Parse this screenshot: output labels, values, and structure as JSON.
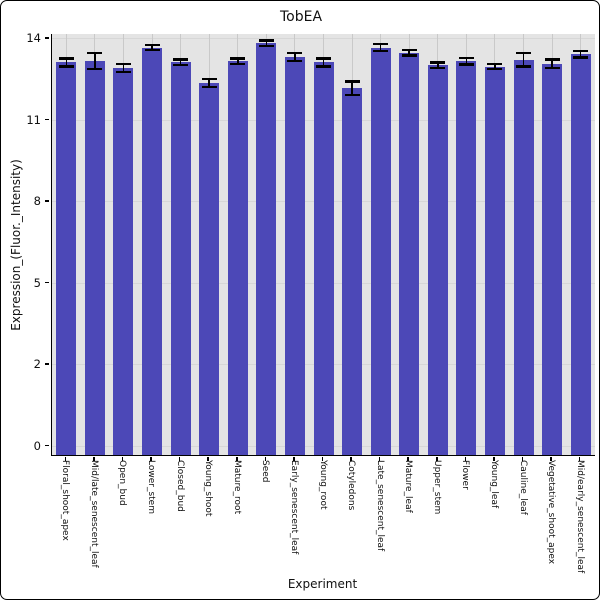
{
  "window": {
    "title": "TobEA"
  },
  "chart_data": {
    "type": "bar",
    "title": "TobEA",
    "xlabel": "Experiment",
    "ylabel": "Expression_(Fluor._Intensity)",
    "categories": [
      "Floral_shoot_apex",
      "Mid/late_senescent_leaf",
      "Open_bud",
      "Lower_stem",
      "Closed_bud",
      "Young_shoot",
      "Mature_root",
      "Seed",
      "Early_senescent_leaf",
      "Young_root",
      "Cotyledons",
      "Late_senescent_leaf",
      "Mature_leaf",
      "Upper_stem",
      "Flower",
      "Young_leaf",
      "Cauline_leaf",
      "Vegetative_shoot_apex",
      "Mid/early_senescent_leaf"
    ],
    "values": [
      13.1,
      13.15,
      12.9,
      13.65,
      13.1,
      12.35,
      13.15,
      13.8,
      13.3,
      13.1,
      12.15,
      13.65,
      13.45,
      13.0,
      13.15,
      12.95,
      13.2,
      13.05,
      13.4
    ],
    "errors": [
      0.15,
      0.3,
      0.15,
      0.1,
      0.1,
      0.15,
      0.1,
      0.1,
      0.15,
      0.15,
      0.25,
      0.12,
      0.1,
      0.1,
      0.12,
      0.1,
      0.25,
      0.15,
      0.12
    ],
    "yticks": [
      0,
      2,
      5,
      8,
      11,
      14
    ],
    "ylim": [
      0,
      14.6
    ],
    "grid": true,
    "legend": "none",
    "colors": {
      "bar": "#4c48b7",
      "error_bar": "#000000",
      "panel_bg": "#e4e4e4",
      "grid_h": "#d7d7d7",
      "grid_v": "#c9c9c9",
      "axis": "#000000"
    }
  }
}
